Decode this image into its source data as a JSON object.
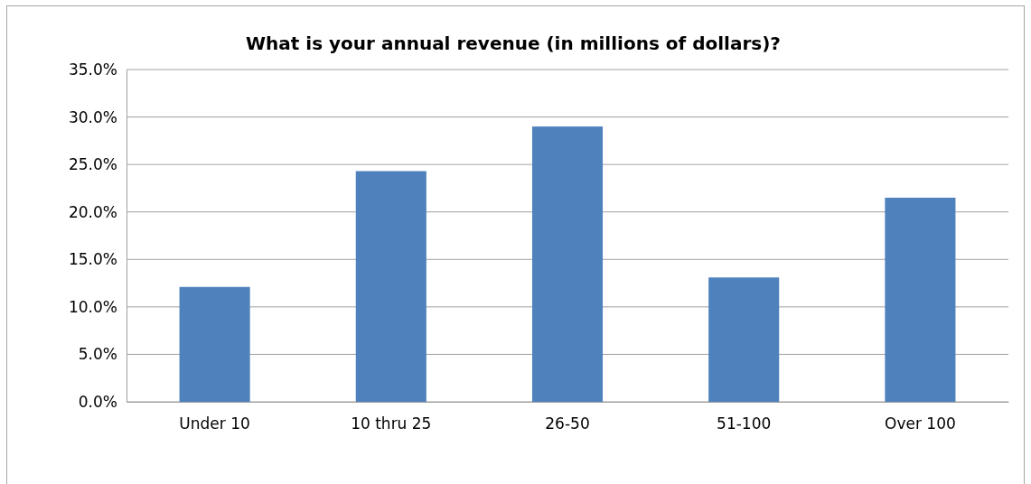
{
  "chart_data": {
    "type": "bar",
    "title": "What is your annual revenue (in millions of dollars)?",
    "categories": [
      "Under 10",
      "10 thru 25",
      "26-50",
      "51-100",
      "Over 100"
    ],
    "values": [
      12.1,
      24.3,
      29.0,
      13.1,
      21.5
    ],
    "color": "#4f81bd",
    "ylim": [
      0,
      35
    ],
    "yticks": [
      {
        "value": 0,
        "label": "0.0%"
      },
      {
        "value": 5,
        "label": "5.0%"
      },
      {
        "value": 10,
        "label": "10.0%"
      },
      {
        "value": 15,
        "label": "15.0%"
      },
      {
        "value": 20,
        "label": "20.0%"
      },
      {
        "value": 25,
        "label": "25.0%"
      },
      {
        "value": 30,
        "label": "30.0%"
      },
      {
        "value": 35,
        "label": "35.0%"
      }
    ],
    "grid": "y",
    "legend": false
  }
}
